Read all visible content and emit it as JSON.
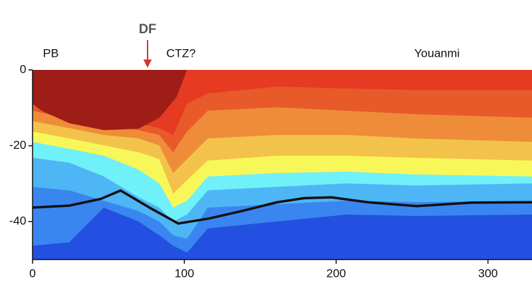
{
  "chart_data": {
    "type": "line",
    "annotations": [
      "PB",
      "DF",
      "CTZ?",
      "Youanmi"
    ],
    "x": [
      0,
      24,
      45,
      58,
      77,
      96,
      116,
      138,
      161,
      179,
      197,
      221,
      253,
      289,
      329
    ],
    "series": [
      {
        "color": "#111111",
        "values": [
          -36.3,
          -35.8,
          -34,
          -31.8,
          -36.3,
          -40.5,
          -39.2,
          -37.2,
          -34.9,
          -33.8,
          -33.6,
          -34.9,
          -35.9,
          -35,
          -34.9
        ]
      }
    ],
    "xlim": [
      0,
      329
    ],
    "ylim": [
      -50,
      0
    ],
    "xticks": [
      0,
      100,
      200,
      300
    ],
    "yticks": [
      0,
      -20,
      -40
    ]
  }
}
